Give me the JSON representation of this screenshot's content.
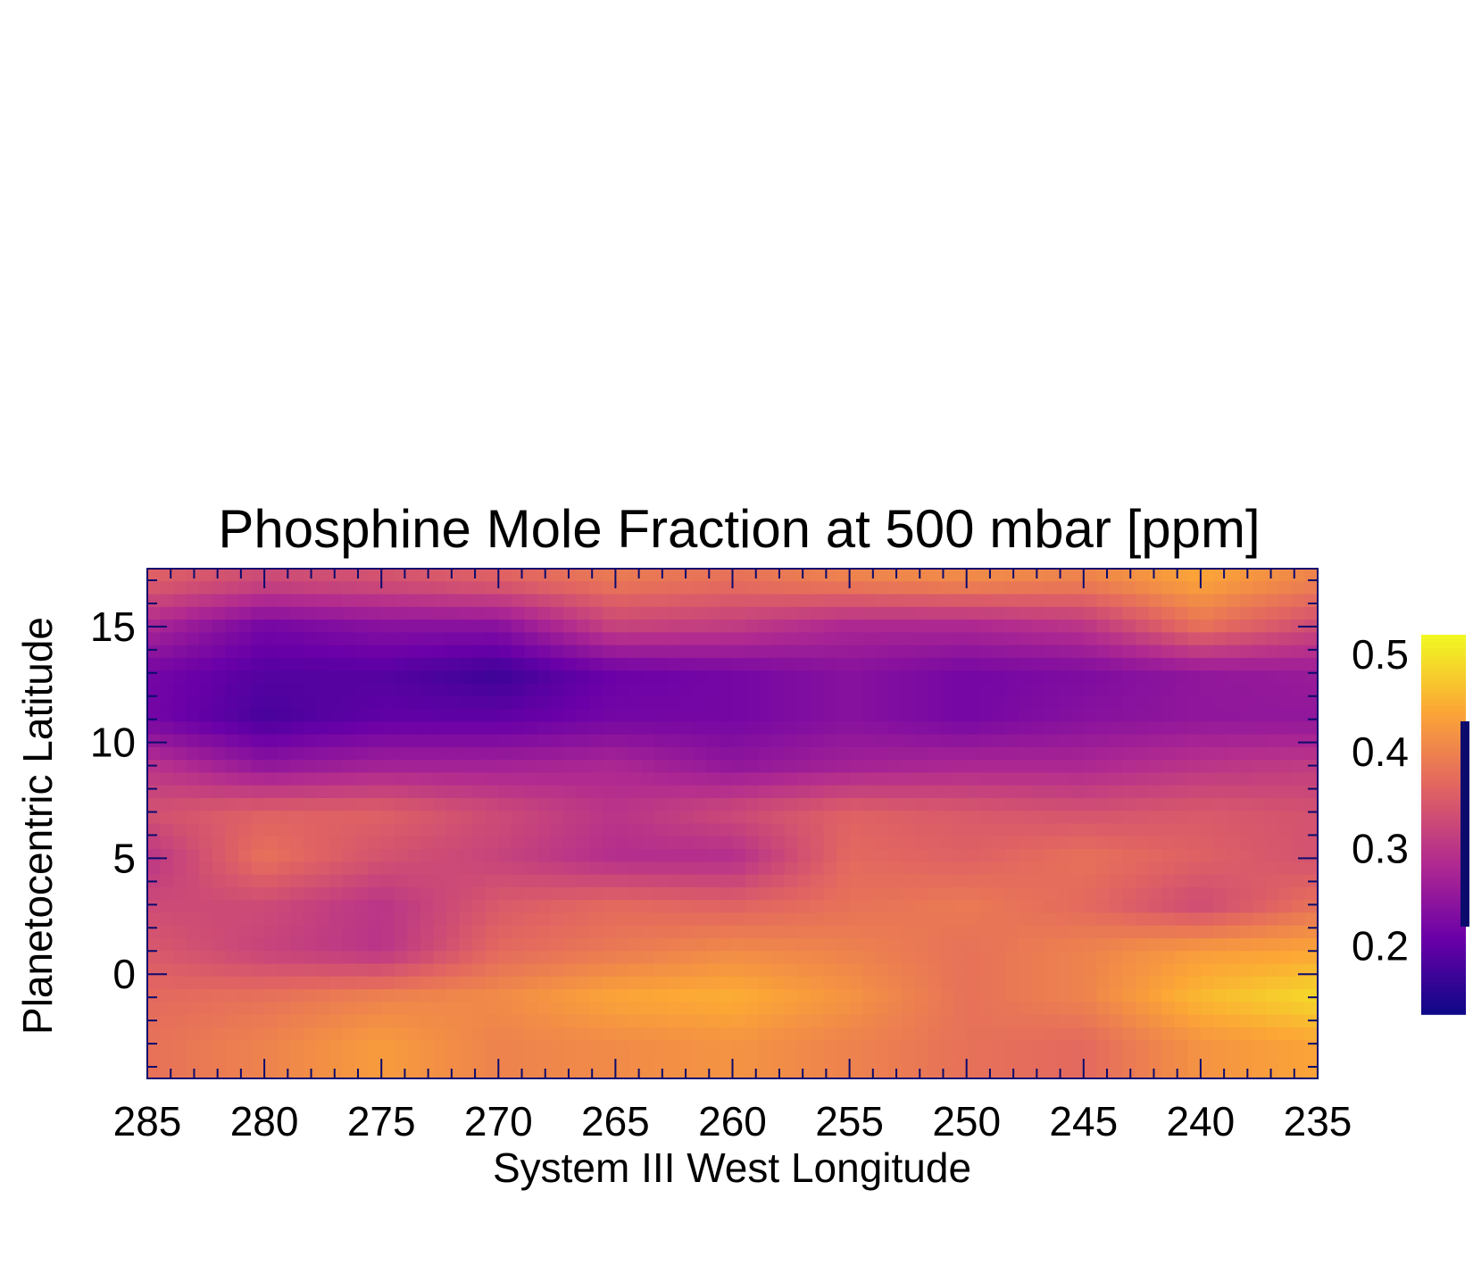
{
  "chart_data": {
    "type": "heatmap",
    "title": "Phosphine Mole Fraction at 500 mbar [ppm]",
    "xlabel": "System III West Longitude",
    "ylabel": "Planetocentric Latitude",
    "xlim": [
      285,
      235
    ],
    "ylim": [
      -4.5,
      17.5
    ],
    "x_ticks": [
      285,
      280,
      275,
      270,
      265,
      260,
      255,
      250,
      245,
      240,
      235
    ],
    "y_ticks": [
      0,
      5,
      10,
      15
    ],
    "colorbar": {
      "range": [
        0.13,
        0.52
      ],
      "ticks": [
        0.2,
        0.3,
        0.4,
        0.5
      ],
      "tick_labels": [
        "0.2",
        "0.3",
        "0.4",
        "0.5"
      ],
      "colormap": "plasma",
      "colors": [
        "#0d0887",
        "#6a00a8",
        "#b12a90",
        "#e16462",
        "#fca636",
        "#f0f921"
      ]
    },
    "grid": false,
    "x": [
      285,
      280,
      275,
      270,
      265,
      260,
      255,
      250,
      245,
      240,
      235
    ],
    "y": [
      17,
      15,
      13,
      11,
      9,
      7,
      5,
      3,
      1,
      -1,
      -3
    ],
    "z": [
      [
        0.36,
        0.33,
        0.34,
        0.36,
        0.39,
        0.38,
        0.4,
        0.41,
        0.4,
        0.44,
        0.4
      ],
      [
        0.28,
        0.22,
        0.24,
        0.24,
        0.32,
        0.31,
        0.28,
        0.28,
        0.3,
        0.38,
        0.33
      ],
      [
        0.22,
        0.19,
        0.19,
        0.17,
        0.21,
        0.22,
        0.24,
        0.22,
        0.23,
        0.25,
        0.26
      ],
      [
        0.22,
        0.18,
        0.2,
        0.2,
        0.22,
        0.22,
        0.24,
        0.22,
        0.24,
        0.25,
        0.25
      ],
      [
        0.3,
        0.25,
        0.27,
        0.27,
        0.28,
        0.25,
        0.27,
        0.28,
        0.28,
        0.3,
        0.31
      ],
      [
        0.34,
        0.36,
        0.36,
        0.33,
        0.3,
        0.33,
        0.36,
        0.35,
        0.34,
        0.35,
        0.34
      ],
      [
        0.3,
        0.38,
        0.34,
        0.32,
        0.29,
        0.29,
        0.37,
        0.36,
        0.38,
        0.36,
        0.34
      ],
      [
        0.33,
        0.33,
        0.3,
        0.35,
        0.37,
        0.36,
        0.38,
        0.39,
        0.37,
        0.33,
        0.38
      ],
      [
        0.35,
        0.32,
        0.3,
        0.37,
        0.39,
        0.41,
        0.4,
        0.38,
        0.4,
        0.43,
        0.44
      ],
      [
        0.37,
        0.38,
        0.4,
        0.41,
        0.44,
        0.45,
        0.42,
        0.38,
        0.4,
        0.46,
        0.49
      ],
      [
        0.38,
        0.4,
        0.43,
        0.4,
        0.41,
        0.42,
        0.4,
        0.38,
        0.37,
        0.42,
        0.44
      ]
    ]
  }
}
